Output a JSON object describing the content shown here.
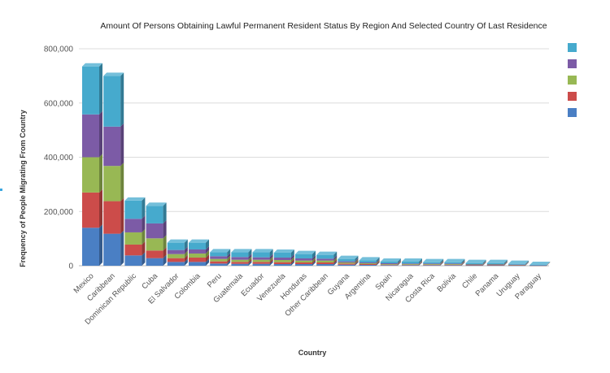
{
  "chart_data": {
    "type": "bar",
    "stacked": true,
    "style": "3d",
    "title": "Amount Of Persons Obtaining Lawful Permanent Resident Status By Region And Selected Country Of Last Residence",
    "xlabel": "Country",
    "ylabel": "Frequency of People Migrating From Country",
    "ylim": [
      0,
      800000
    ],
    "yticks": [
      0,
      200000,
      400000,
      600000,
      800000
    ],
    "ytick_labels": [
      "0",
      "200,000",
      "400,000",
      "600,000",
      "800,000"
    ],
    "grid": true,
    "legend_position": "right",
    "categories": [
      "Mexico",
      "Caribbean",
      "Dominican Republic",
      "Cuba",
      "El Salvador",
      "Colombia",
      "Peru",
      "Guatemala",
      "Ecuador",
      "Venezuela",
      "Honduras",
      "Other Caribbean",
      "Guyana",
      "Argentina",
      "Spain",
      "Nicaragua",
      "Costa Rica",
      "Bolivia",
      "Chile",
      "Panama",
      "Uruguay",
      "Paraguay"
    ],
    "series": [
      {
        "name": "",
        "color": "#4a7fc4",
        "values": [
          140000,
          118000,
          38000,
          28000,
          14000,
          14000,
          8000,
          7000,
          7000,
          6000,
          6000,
          6000,
          4000,
          3000,
          2000,
          2000,
          2000,
          2000,
          1500,
          1500,
          1000,
          500
        ]
      },
      {
        "name": "",
        "color": "#cc4c4a",
        "values": [
          130000,
          120000,
          40000,
          28000,
          14000,
          16000,
          8000,
          7000,
          7000,
          7000,
          6000,
          6000,
          4000,
          3000,
          2000,
          2000,
          2000,
          2000,
          1500,
          1500,
          1000,
          500
        ]
      },
      {
        "name": "",
        "color": "#98b854",
        "values": [
          130000,
          130000,
          45000,
          45000,
          15000,
          15000,
          9000,
          8000,
          8000,
          8000,
          7000,
          7000,
          4000,
          3000,
          2000,
          2000,
          2000,
          2000,
          1500,
          1500,
          1000,
          500
        ]
      },
      {
        "name": "",
        "color": "#7c5ba6",
        "values": [
          158000,
          145000,
          50000,
          55000,
          15000,
          15000,
          10000,
          10000,
          9000,
          9000,
          8000,
          7000,
          4000,
          3000,
          3000,
          2000,
          2000,
          2000,
          1500,
          1500,
          1000,
          500
        ]
      },
      {
        "name": "",
        "color": "#46aacd",
        "values": [
          177000,
          187000,
          67000,
          65000,
          27000,
          25000,
          15000,
          18000,
          19000,
          18000,
          16000,
          14000,
          9000,
          8000,
          6000,
          7000,
          5000,
          5000,
          4000,
          4000,
          3000,
          1000
        ]
      }
    ]
  }
}
